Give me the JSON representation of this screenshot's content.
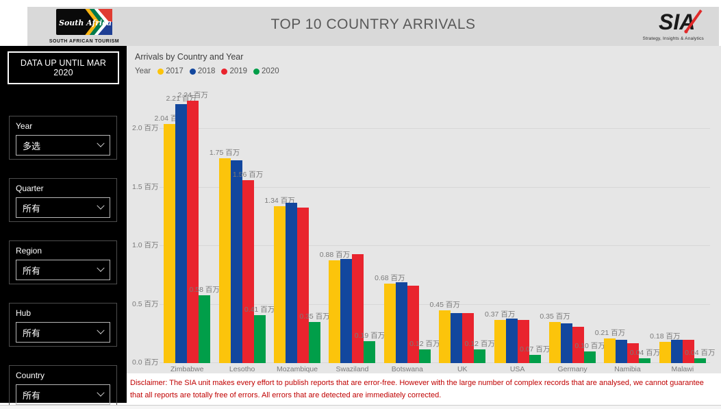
{
  "header": {
    "title": "TOP 10 COUNTRY ARRIVALS",
    "sat_logo_text": "South Africa",
    "sat_logo_caption": "SOUTH AFRICAN TOURISM",
    "sia_logo_text": "SIA",
    "sia_tagline": "Strategy, Insights & Analytics"
  },
  "sidebar": {
    "note": "DATA UP UNTIL MAR 2020",
    "filters": [
      {
        "label": "Year",
        "value": "多选"
      },
      {
        "label": "Quarter",
        "value": "所有"
      },
      {
        "label": "Region",
        "value": "所有"
      },
      {
        "label": "Hub",
        "value": "所有"
      },
      {
        "label": "Country",
        "value": "所有"
      }
    ]
  },
  "chart_data": {
    "type": "bar",
    "title": "Arrivals by Country and Year",
    "legend_title": "Year",
    "legend_position": "top",
    "grid": true,
    "unit": "百万",
    "ylim": [
      0,
      2.3
    ],
    "yticks": [
      {
        "value": 0.0,
        "label": "0.0 百万"
      },
      {
        "value": 0.5,
        "label": "0.5 百万"
      },
      {
        "value": 1.0,
        "label": "1.0 百万"
      },
      {
        "value": 1.5,
        "label": "1.5 百万"
      },
      {
        "value": 2.0,
        "label": "2.0 百万"
      }
    ],
    "categories": [
      "Zimbabwe",
      "Lesotho",
      "Mozambique",
      "Swaziland",
      "Botswana",
      "UK",
      "USA",
      "Germany",
      "Namibia",
      "Malawi"
    ],
    "series": [
      {
        "name": "2017",
        "color": "#FCC40B",
        "values": [
          2.04,
          1.75,
          1.34,
          0.88,
          0.68,
          0.45,
          0.37,
          0.35,
          0.21,
          0.18
        ],
        "labels": [
          "2.04 百万",
          "1.75 百万",
          "1.34 百万",
          "0.88 百万",
          "0.68 百万",
          "0.45 百万",
          "0.37 百万",
          "0.35 百万",
          "0.21 百万",
          "0.18 百万"
        ]
      },
      {
        "name": "2018",
        "color": "#12479E",
        "values": [
          2.21,
          1.73,
          1.37,
          0.89,
          0.69,
          0.43,
          0.38,
          0.34,
          0.2,
          0.2
        ],
        "labels": [
          "2.21 百万",
          null,
          null,
          null,
          null,
          null,
          null,
          null,
          null,
          null
        ]
      },
      {
        "name": "2019",
        "color": "#E9242E",
        "values": [
          2.24,
          1.56,
          1.33,
          0.93,
          0.66,
          0.43,
          0.37,
          0.31,
          0.17,
          0.2
        ],
        "labels": [
          "2.24 百万",
          "1.56 百万",
          null,
          null,
          null,
          null,
          null,
          null,
          null,
          null
        ]
      },
      {
        "name": "2020",
        "color": "#019E49",
        "values": [
          0.58,
          0.41,
          0.35,
          0.19,
          0.12,
          0.12,
          0.07,
          0.1,
          0.04,
          0.04
        ],
        "labels": [
          "0.58 百万",
          "0.41 百万",
          "0.35 百万",
          "0.19 百万",
          "0.12 百万",
          "0.12 百万",
          "0.07 百万",
          "0.10 百万",
          "0.04 百万",
          "0.04 百万"
        ]
      }
    ]
  },
  "footer": {
    "disclaimer": "Disclaimer: The SIA unit makes every effort to publish reports that are error-free. However with the large number of complex records that are analysed, we cannot guarantee that all reports are totally free of errors. All errors that are detected are immediately corrected."
  },
  "colors": {
    "header_bg": "#d9d9d9",
    "chart_bg": "#e6e6e6",
    "sidebar_bg": "#000000",
    "disclaimer_text": "#c00000"
  }
}
